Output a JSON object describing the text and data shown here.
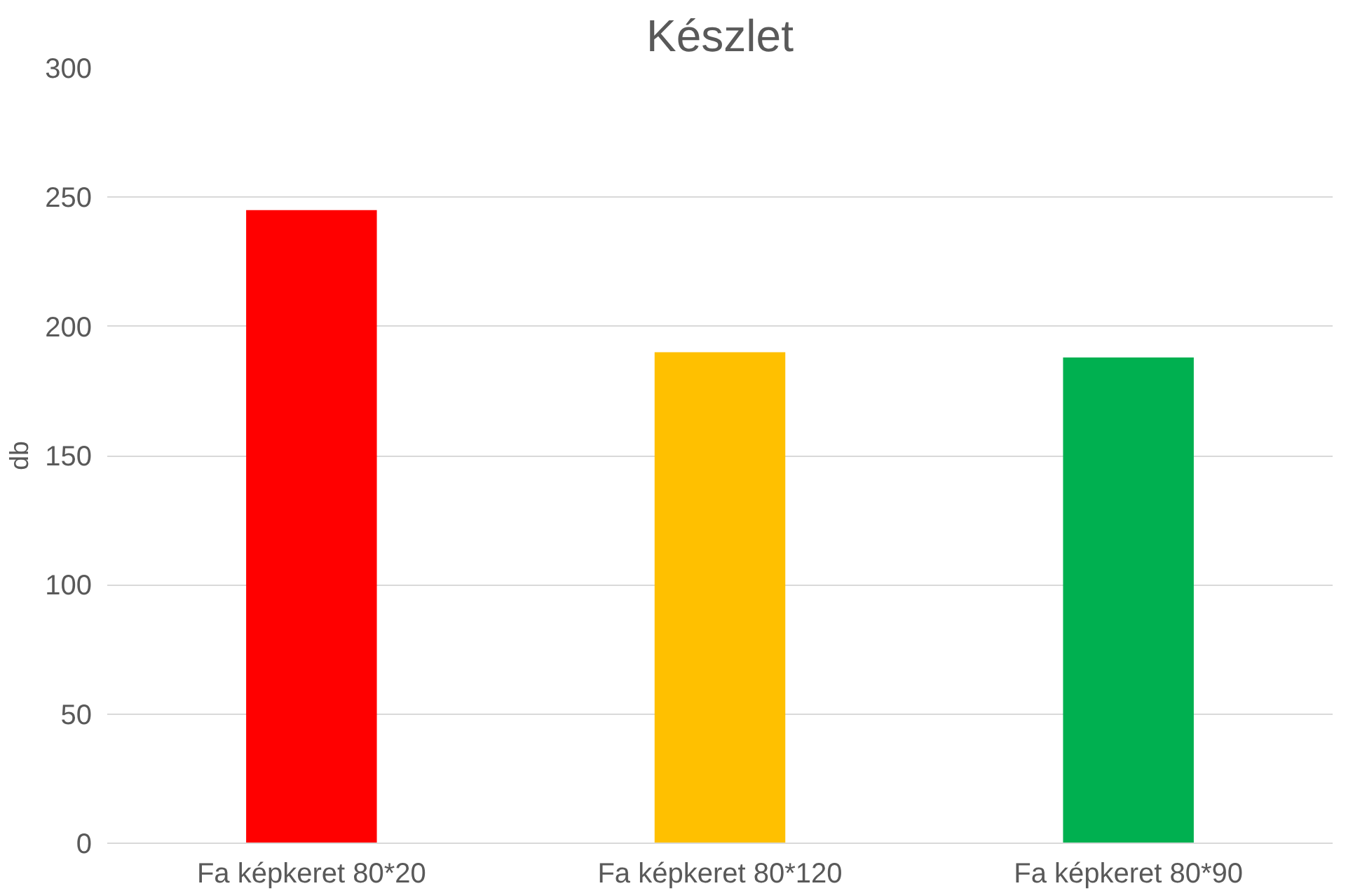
{
  "chart_data": {
    "type": "bar",
    "title": "Készlet",
    "ylabel": "db",
    "categories": [
      "Fa képkeret 80*20",
      "Fa képkeret 80*120",
      "Fa képkeret 80*90"
    ],
    "values": [
      245,
      190,
      188
    ],
    "colors": [
      "#ff0000",
      "#ffc000",
      "#00b050"
    ],
    "ylim": [
      0,
      300
    ],
    "yticks": [
      0,
      50,
      100,
      150,
      200,
      250,
      300
    ],
    "grid": "y"
  }
}
